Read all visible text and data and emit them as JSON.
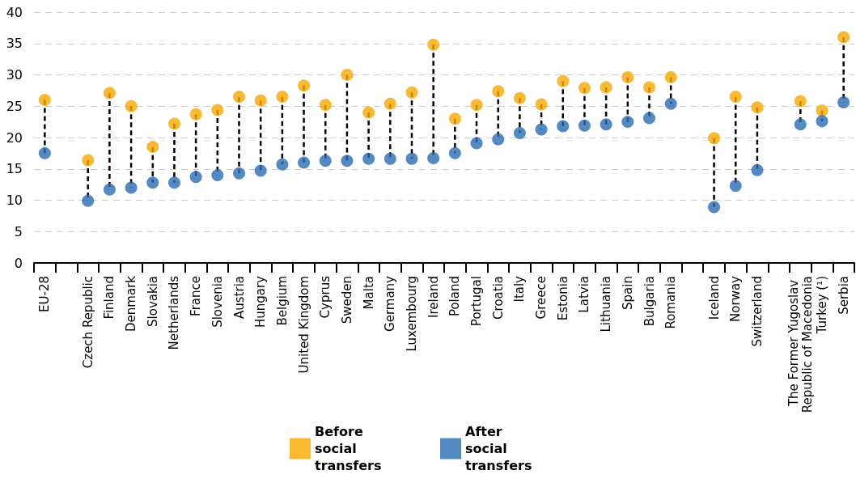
{
  "chart_data": {
    "type": "scatter",
    "categories": [
      "EU-28",
      null,
      "Czech Republic",
      "Finland",
      "Denmark",
      "Slovakia",
      "Netherlands",
      "France",
      "Slovenia",
      "Austria",
      "Hungary",
      "Belgium",
      "United Kingdom",
      "Cyprus",
      "Sweden",
      "Malta",
      "Germany",
      "Luxembourg",
      "Ireland",
      "Poland",
      "Portugal",
      "Croatia",
      "Italy",
      "Greece",
      "Estonia",
      "Latvia",
      "Lithuania",
      "Spain",
      "Bulgaria",
      "Romania",
      null,
      "Iceland",
      "Norway",
      "Switzerland",
      null,
      "The Former Yugoslav Republic of Macedonia",
      "Turkey (¹)",
      "Serbia"
    ],
    "series": [
      {
        "name": "Before social transfers",
        "color": "#f7a800",
        "values": [
          26.0,
          null,
          16.4,
          27.1,
          25.0,
          18.5,
          22.2,
          23.7,
          24.4,
          26.5,
          25.9,
          26.5,
          28.3,
          25.2,
          30.0,
          24.0,
          25.4,
          27.2,
          34.8,
          23.0,
          25.2,
          27.4,
          26.3,
          25.3,
          29.0,
          27.9,
          28.0,
          29.6,
          28.0,
          29.6,
          null,
          19.9,
          26.5,
          24.8,
          null,
          25.8,
          24.3,
          36.0
        ]
      },
      {
        "name": "After social transfers",
        "color": "#2b6cb3",
        "values": [
          17.5,
          null,
          9.9,
          11.7,
          12.0,
          12.8,
          12.8,
          13.7,
          14.0,
          14.3,
          14.7,
          15.7,
          16.0,
          16.3,
          16.3,
          16.6,
          16.6,
          16.6,
          16.7,
          17.5,
          19.1,
          19.7,
          20.7,
          21.3,
          21.8,
          21.9,
          22.1,
          22.5,
          23.1,
          25.4,
          null,
          8.9,
          12.3,
          14.8,
          null,
          22.1,
          22.6,
          25.6
        ]
      }
    ],
    "ylim": [
      0,
      40
    ],
    "yticks": [
      0,
      5,
      10,
      15,
      20,
      25,
      30,
      35,
      40
    ],
    "grid": "y",
    "legend": "bottom",
    "marker": "circle",
    "line_style": "dashed"
  }
}
